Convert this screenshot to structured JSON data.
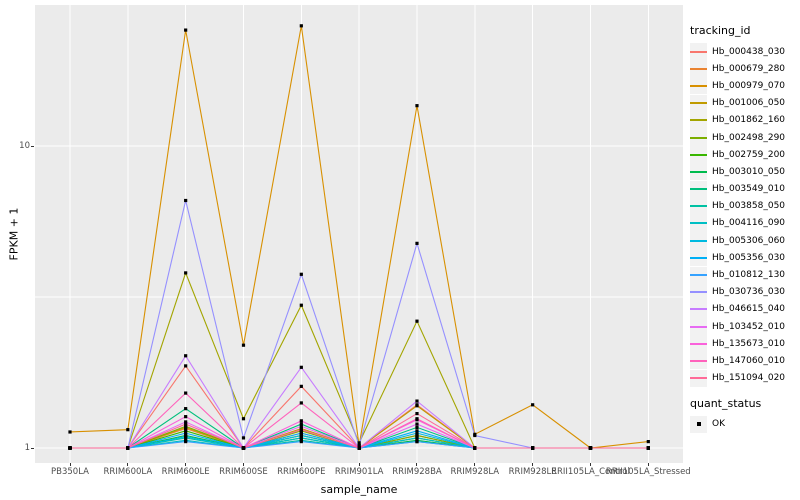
{
  "figure": {
    "panel_bg": "#EBEBEB",
    "grid_color": "#FFFFFF",
    "tick_color": "#333333",
    "tick_label_color": "#4D4D4D",
    "point_color": "#000000"
  },
  "axes": {
    "x_title": "sample_name",
    "y_title": "FPKM + 1",
    "y_ticks": [
      {
        "label": "10",
        "value": 10
      },
      {
        "label": "1",
        "value": 1
      }
    ]
  },
  "legend": {
    "tracking_title": "tracking_id",
    "quant_title": "quant_status",
    "quant_items": [
      {
        "label": "OK"
      }
    ]
  },
  "chart_data": {
    "type": "line",
    "x_type": "categorical",
    "y_scale": "log10",
    "ylim": [
      0.95,
      29
    ],
    "y_major_breaks": [
      1,
      10
    ],
    "y_minor_breaks": [
      3.1623
    ],
    "grid": true,
    "legend_position": "right",
    "point_shape": "filled-square-black",
    "categories": [
      "PB350LA",
      "RRIM600LA",
      "RRIM600LE",
      "RRIM600SE",
      "RRIM600PE",
      "RRIM901LA",
      "RRIM928BA",
      "RRIM928LA",
      "RRIM928LE",
      "RRII105LA_Control",
      "RRII105LA_Stressed"
    ],
    "series": [
      {
        "name": "Hb_000438_030",
        "color": "#F8766D",
        "values": [
          1,
          1,
          1.87,
          1,
          1.6,
          1,
          1.39,
          1,
          1,
          1,
          1
        ]
      },
      {
        "name": "Hb_000679_280",
        "color": "#EA8331",
        "values": [
          1,
          1,
          1.16,
          1,
          1.12,
          1,
          1.1,
          1,
          1,
          1,
          1
        ]
      },
      {
        "name": "Hb_000979_070",
        "color": "#D89000",
        "values": [
          1.13,
          1.15,
          24.2,
          2.19,
          25.0,
          1.02,
          13.6,
          1.11,
          1.39,
          1.0,
          1.05
        ]
      },
      {
        "name": "Hb_001006_050",
        "color": "#C09B00",
        "values": [
          1,
          1,
          1.17,
          1,
          1.16,
          1,
          1.38,
          1,
          1,
          1,
          1
        ]
      },
      {
        "name": "Hb_001862_160",
        "color": "#A3A500",
        "values": [
          1,
          1,
          3.8,
          1.25,
          2.97,
          1.04,
          2.63,
          1,
          1,
          1,
          1
        ]
      },
      {
        "name": "Hb_002498_290",
        "color": "#7CAE00",
        "values": [
          1,
          1,
          1.18,
          1,
          1.14,
          1,
          1.1,
          1,
          1,
          1,
          1
        ]
      },
      {
        "name": "Hb_002759_200",
        "color": "#39B600",
        "values": [
          1,
          1,
          1.14,
          1,
          1.1,
          1,
          1.08,
          1,
          1,
          1,
          1
        ]
      },
      {
        "name": "Hb_003010_050",
        "color": "#00BB4E",
        "values": [
          1,
          1,
          1.1,
          1,
          1.08,
          1,
          1.06,
          1,
          1,
          1,
          1
        ]
      },
      {
        "name": "Hb_003549_010",
        "color": "#00BF7D",
        "values": [
          1,
          1,
          1.35,
          1,
          1.2,
          1,
          1.17,
          1,
          1,
          1,
          1
        ]
      },
      {
        "name": "Hb_003858_050",
        "color": "#00C1A3",
        "values": [
          1,
          1,
          1.08,
          1,
          1.06,
          1,
          1.05,
          1,
          1,
          1,
          1
        ]
      },
      {
        "name": "Hb_004116_090",
        "color": "#00BFC4",
        "values": [
          1,
          1,
          1.06,
          1,
          1.08,
          1,
          1.08,
          1,
          1,
          1,
          1
        ]
      },
      {
        "name": "Hb_005306_060",
        "color": "#00BAE0",
        "values": [
          1,
          1,
          1.09,
          1,
          1.1,
          1,
          1.12,
          1,
          1,
          1,
          1
        ]
      },
      {
        "name": "Hb_005356_030",
        "color": "#00B0F6",
        "values": [
          1,
          1,
          1.12,
          1,
          1.12,
          1,
          1.14,
          1,
          1,
          1,
          1
        ]
      },
      {
        "name": "Hb_010812_130",
        "color": "#35A2FF",
        "values": [
          1,
          1,
          1.05,
          1,
          1.05,
          1,
          1.05,
          1,
          1,
          1,
          1
        ]
      },
      {
        "name": "Hb_030736_030",
        "color": "#9590FF",
        "values": [
          1,
          1,
          6.6,
          1.08,
          3.76,
          1.02,
          4.76,
          1.1,
          1,
          1,
          1
        ]
      },
      {
        "name": "Hb_046615_040",
        "color": "#C77CFF",
        "values": [
          1,
          1,
          2.02,
          1,
          1.85,
          1,
          1.43,
          1,
          1,
          1,
          1
        ]
      },
      {
        "name": "Hb_103452_010",
        "color": "#E76BF3",
        "values": [
          1,
          1,
          1.22,
          1,
          1.18,
          1,
          1.2,
          1,
          1,
          1,
          1
        ]
      },
      {
        "name": "Hb_135673_010",
        "color": "#FA62DB",
        "values": [
          1,
          1,
          1.27,
          1,
          1.23,
          1,
          1.24,
          1,
          1,
          1,
          1
        ]
      },
      {
        "name": "Hb_147060_010",
        "color": "#FF62BC",
        "values": [
          1,
          1,
          1.52,
          1,
          1.41,
          1,
          1.25,
          1,
          1,
          1,
          1
        ]
      },
      {
        "name": "Hb_151094_020",
        "color": "#FF6A98",
        "values": [
          1,
          1,
          1.2,
          1,
          1.15,
          1,
          1.3,
          1,
          1,
          1,
          1
        ]
      }
    ]
  }
}
